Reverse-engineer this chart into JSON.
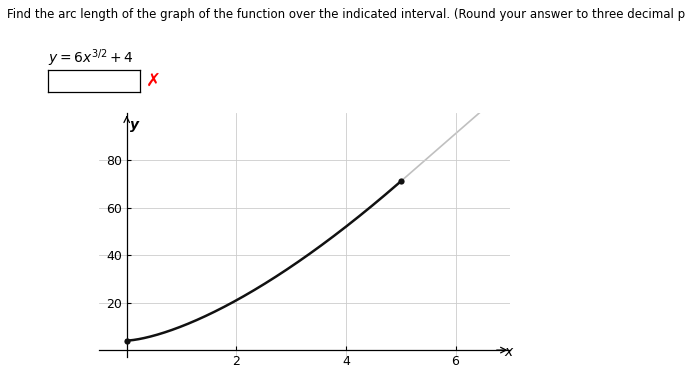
{
  "title_text": "Find the arc length of the graph of the function over the indicated interval. (Round your answer to three decimal places.)",
  "xlabel": "x",
  "ylabel": "y",
  "x_start": 0,
  "x_end": 5,
  "x_tangent_end": 6.5,
  "y_func_start": 4,
  "xlim": [
    -0.5,
    7.0
  ],
  "ylim": [
    -3,
    100
  ],
  "yticks": [
    20,
    40,
    60,
    80
  ],
  "xticks": [
    2,
    4,
    6
  ],
  "curve_color": "#111111",
  "tangent_color": "#c0c0c0",
  "dot_color": "#111111",
  "grid_color": "#cccccc",
  "bg_color": "#ffffff",
  "title_fontsize": 8.5,
  "formula_fontsize": 10,
  "label_fontsize": 10,
  "tick_fontsize": 9
}
